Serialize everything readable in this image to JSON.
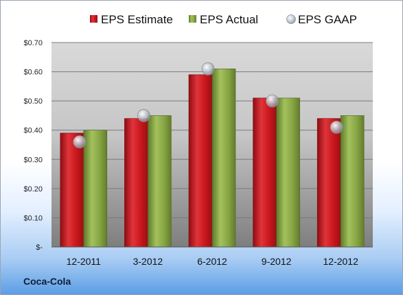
{
  "company": "Coca-Cola",
  "chart_data": {
    "type": "bar",
    "categories": [
      "12-2011",
      "3-2012",
      "6-2012",
      "9-2012",
      "12-2012"
    ],
    "series": [
      {
        "name": "EPS Estimate",
        "kind": "bar",
        "color": "#c0151b",
        "values": [
          0.39,
          0.44,
          0.59,
          0.51,
          0.44
        ]
      },
      {
        "name": "EPS Actual",
        "kind": "bar",
        "color": "#7f9b3c",
        "values": [
          0.4,
          0.45,
          0.61,
          0.51,
          0.45
        ]
      },
      {
        "name": "EPS GAAP",
        "kind": "marker",
        "color": "#b9bec6",
        "values": [
          0.36,
          0.45,
          0.61,
          0.5,
          0.41
        ]
      }
    ],
    "ylim": [
      0,
      0.7
    ],
    "yticks": [
      0,
      0.1,
      0.2,
      0.3,
      0.4,
      0.5,
      0.6,
      0.7
    ],
    "ytick_labels": [
      "$-",
      "$0.10",
      "$0.20",
      "$0.30",
      "$0.40",
      "$0.50",
      "$0.60",
      "$0.70"
    ],
    "grid": true,
    "legend": "top"
  }
}
